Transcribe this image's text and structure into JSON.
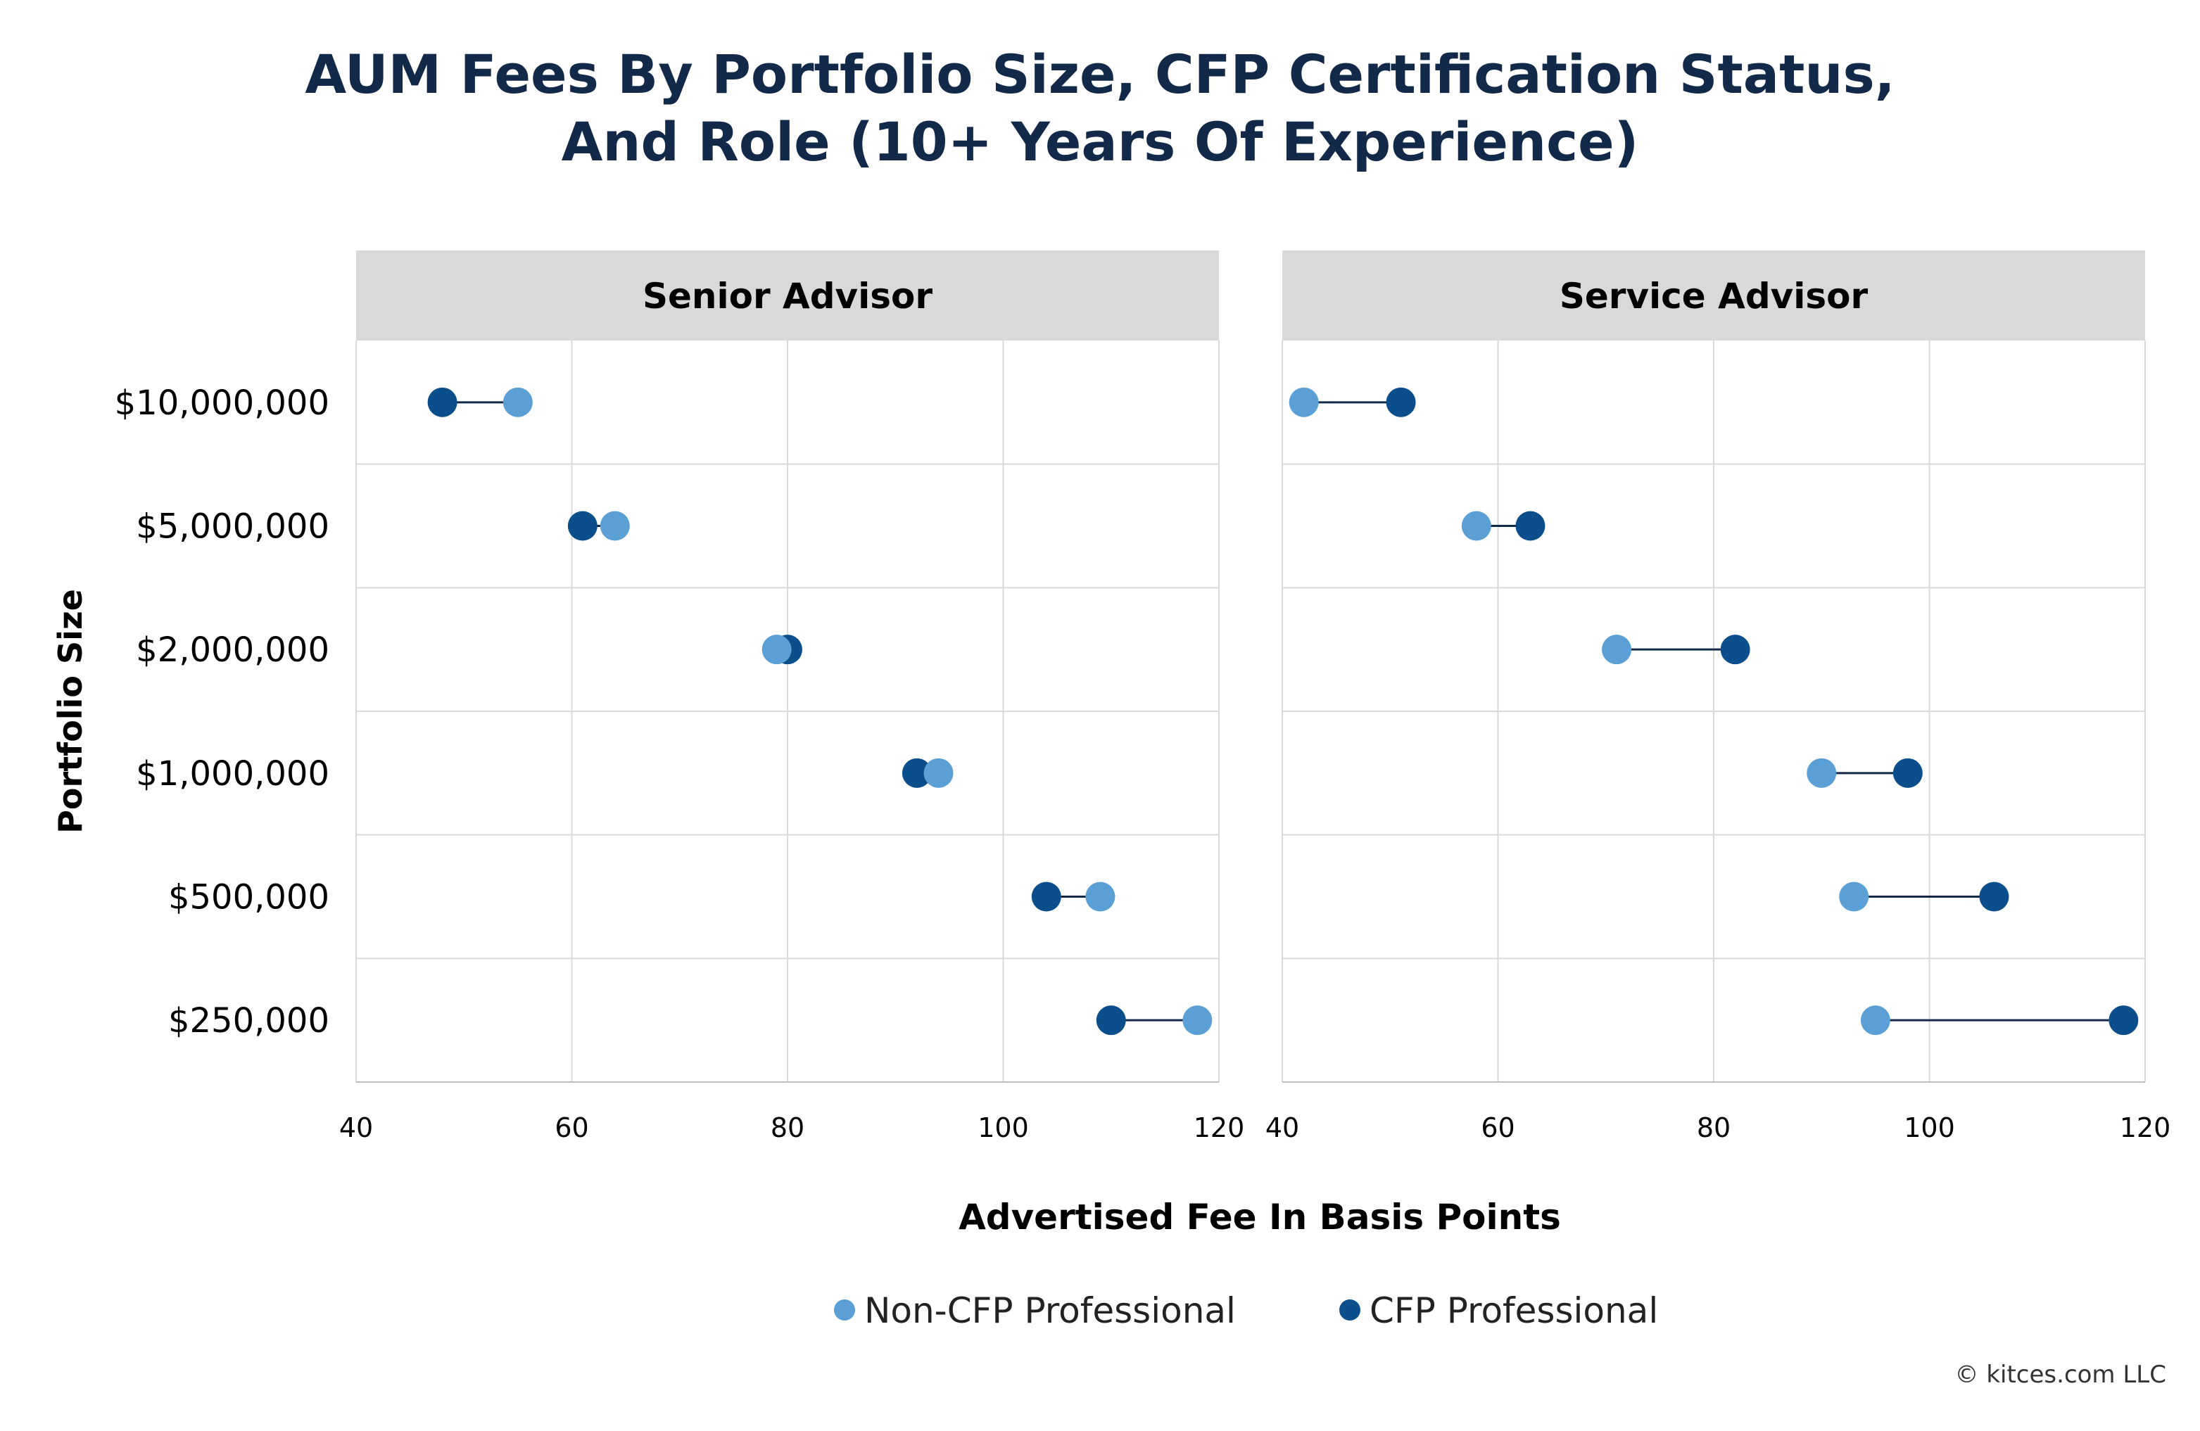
{
  "chart_data": {
    "type": "dumbbell",
    "title": [
      "AUM Fees By Portfolio Size, CFP Certification Status,",
      "And Role (10+ Years Of Experience)"
    ],
    "xlabel": "Advertised Fee In Basis Points",
    "ylabel": "Portfolio Size",
    "xlim": [
      40,
      120
    ],
    "x_ticks": [
      40,
      60,
      80,
      100,
      120
    ],
    "categories": [
      "$10,000,000",
      "$5,000,000",
      "$2,000,000",
      "$1,000,000",
      "$500,000",
      "$250,000"
    ],
    "legend": {
      "position": "bottom",
      "entries": [
        {
          "label": "Non-CFP Professional",
          "color": "#5aa0d6"
        },
        {
          "label": "CFP Professional",
          "color": "#0b4e8c"
        }
      ]
    },
    "grid": true,
    "panels": [
      {
        "name": "Senior Advisor",
        "series": [
          {
            "name": "Non-CFP Professional",
            "values": [
              55,
              64,
              79,
              94,
              109,
              118
            ]
          },
          {
            "name": "CFP Professional",
            "values": [
              48,
              61,
              80,
              92,
              104,
              110
            ]
          }
        ]
      },
      {
        "name": "Service Advisor",
        "series": [
          {
            "name": "Non-CFP Professional",
            "values": [
              42,
              58,
              71,
              90,
              93,
              95
            ]
          },
          {
            "name": "CFP Professional",
            "values": [
              51,
              63,
              82,
              98,
              106,
              118
            ]
          }
        ]
      }
    ]
  },
  "colors": {
    "title": "#12294a",
    "non_cfp": "#5aa0d6",
    "cfp": "#0b4e8c",
    "connector": "#12294a",
    "panel_header": "#d9d9d9",
    "grid": "#d9d9d9"
  },
  "footer": {
    "credit": "© kitces.com LLC"
  }
}
